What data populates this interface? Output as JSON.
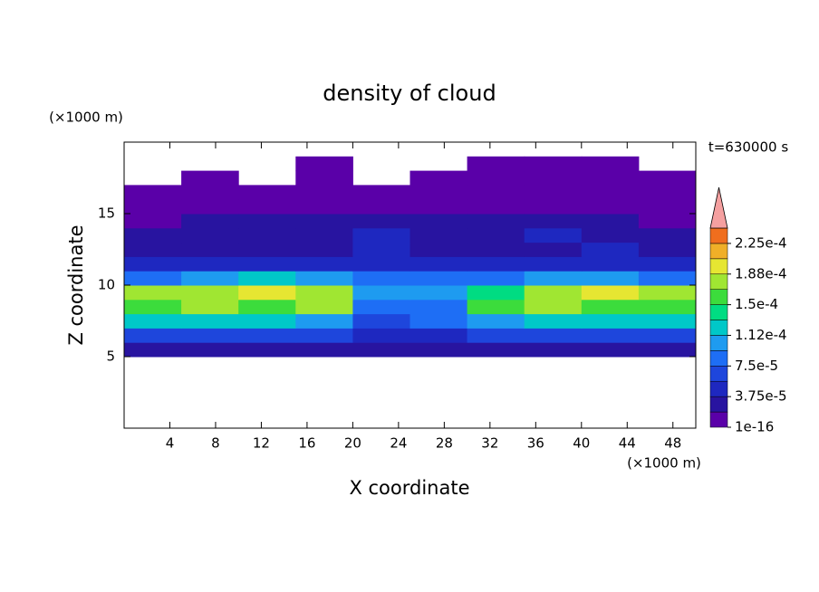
{
  "chart_data": {
    "type": "contour",
    "title": "density of cloud",
    "x_label": "X coordinate",
    "y_label": "Z coordinate",
    "x_unit": "(×1000 m)",
    "y_unit": "(×1000 m)",
    "annotation": "t=630000 s",
    "xlim": [
      0,
      50
    ],
    "ylim": [
      0,
      20
    ],
    "xticks": [
      4,
      8,
      12,
      16,
      20,
      24,
      28,
      32,
      36,
      40,
      44,
      48
    ],
    "yticks": [
      5,
      10,
      15
    ],
    "x": [
      2.5,
      7.5,
      12.5,
      17.5,
      22.5,
      27.5,
      32.5,
      37.5,
      42.5,
      47.5
    ],
    "y": [
      5.5,
      6.5,
      7.5,
      8.5,
      9.5,
      10.5,
      11.5,
      12.5,
      13.5,
      14.5,
      15.5,
      16.5,
      17.5,
      18.5
    ],
    "z": [
      [
        3e-05,
        3e-05,
        3e-05,
        3e-05,
        2e-05,
        2e-05,
        3e-05,
        3e-05,
        3e-05,
        3e-05
      ],
      [
        6e-05,
        7e-05,
        6e-05,
        6e-05,
        4e-05,
        5e-05,
        6e-05,
        7e-05,
        7e-05,
        6e-05
      ],
      [
        0.00012,
        0.00013,
        0.00012,
        0.00011,
        7e-05,
        8e-05,
        0.00011,
        0.00012,
        0.00013,
        0.00012
      ],
      [
        0.00016,
        0.00017,
        0.00016,
        0.00017,
        9e-05,
        9e-05,
        0.00015,
        0.00017,
        0.00016,
        0.00016
      ],
      [
        0.00017,
        0.00018,
        0.00019,
        0.00018,
        0.00011,
        0.0001,
        0.00014,
        0.00017,
        0.00019,
        0.00017
      ],
      [
        9e-05,
        0.0001,
        0.00012,
        0.00011,
        8e-05,
        8e-05,
        9e-05,
        0.0001,
        0.00011,
        9e-05
      ],
      [
        4e-05,
        4e-05,
        5e-05,
        4e-05,
        5e-05,
        4e-05,
        4e-05,
        4e-05,
        4e-05,
        4e-05
      ],
      [
        3e-05,
        2e-05,
        3e-05,
        3e-05,
        4e-05,
        3e-05,
        2e-05,
        3e-05,
        4e-05,
        3e-05
      ],
      [
        2e-05,
        2e-05,
        2e-05,
        3e-05,
        4e-05,
        2e-05,
        2e-05,
        4e-05,
        2e-05,
        2e-05
      ],
      [
        1e-05,
        2e-05,
        2e-05,
        2e-05,
        2e-05,
        2e-05,
        2e-05,
        3e-05,
        2e-05,
        1e-05
      ],
      [
        1e-05,
        1e-05,
        1e-05,
        1e-05,
        1e-05,
        1e-05,
        1e-05,
        1e-05,
        1e-05,
        1e-05
      ],
      [
        1e-05,
        1e-05,
        1e-05,
        1e-05,
        1e-05,
        1e-05,
        1e-05,
        1e-05,
        1e-05,
        1e-05
      ],
      [
        null,
        1e-05,
        null,
        1e-05,
        null,
        1e-05,
        1e-05,
        1e-05,
        1e-05,
        1e-05
      ],
      [
        null,
        null,
        null,
        1e-05,
        null,
        null,
        1e-05,
        1e-05,
        1e-05,
        null
      ]
    ],
    "levels": [
      1e-16,
      1.875e-05,
      3.75e-05,
      5.625e-05,
      7.5e-05,
      9.375e-05,
      0.0001125,
      0.00013125,
      0.00015,
      0.00016875,
      0.0001875,
      0.00020625,
      0.000225,
      0.00024375
    ],
    "colors": [
      "#5a00a8",
      "#2814a0",
      "#1e28c0",
      "#1e46dc",
      "#1e6ef5",
      "#1e9bf0",
      "#00c8c8",
      "#00dc82",
      "#3cdc3c",
      "#a0e632",
      "#e6e632",
      "#f0af28",
      "#f06e1e"
    ],
    "extend_color": "#f5a0a0",
    "colorbar_ticks": [
      {
        "value": 1e-16,
        "label": "1e-16"
      },
      {
        "value": 3.75e-05,
        "label": "3.75e-5"
      },
      {
        "value": 7.5e-05,
        "label": "7.5e-5"
      },
      {
        "value": 0.0001125,
        "label": "1.12e-4"
      },
      {
        "value": 0.00015,
        "label": "1.5e-4"
      },
      {
        "value": 0.0001875,
        "label": "1.88e-4"
      },
      {
        "value": 0.000225,
        "label": "2.25e-4"
      }
    ]
  }
}
